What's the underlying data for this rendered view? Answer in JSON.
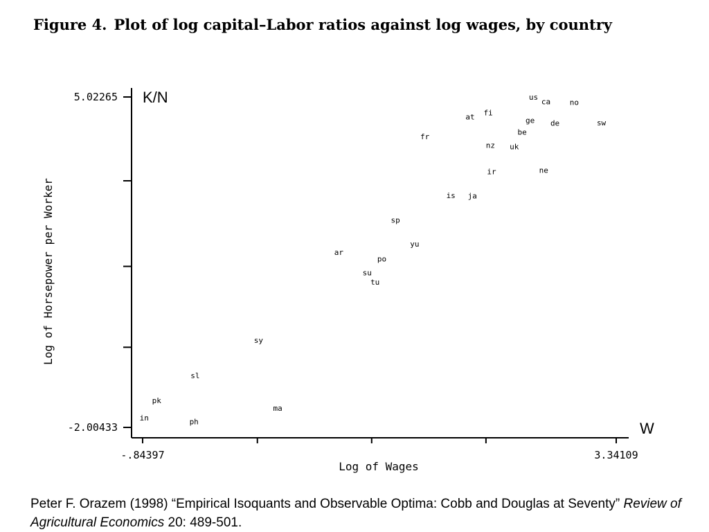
{
  "title": {
    "figure_label": "Figure 4.",
    "text": "Plot of log capital–Labor ratios against log wages, by country"
  },
  "chart_data": {
    "type": "scatter",
    "xlabel": "Log of Wages",
    "ylabel": "Log of Horsepower per Worker",
    "x_end_label": "W",
    "y_end_label": "K/N",
    "xlim": [
      -0.84397,
      3.34109
    ],
    "ylim": [
      -2.00433,
      5.02265
    ],
    "x_ticks": [
      -0.84397,
      0.17,
      1.18,
      2.19,
      3.34109
    ],
    "x_tick_labels": [
      "-.84397",
      "",
      "",
      "",
      "3.34109"
    ],
    "y_ticks": [
      -2.00433,
      -0.3,
      1.42,
      3.24,
      5.02265
    ],
    "y_tick_labels": [
      "-2.00433",
      "",
      "",
      "",
      "5.02265"
    ],
    "grid": false,
    "points": [
      {
        "label": "us",
        "x": 2.61,
        "y": 5.02
      },
      {
        "label": "ca",
        "x": 2.72,
        "y": 4.93
      },
      {
        "label": "no",
        "x": 2.97,
        "y": 4.91
      },
      {
        "label": "fi",
        "x": 2.21,
        "y": 4.69
      },
      {
        "label": "at",
        "x": 2.05,
        "y": 4.6
      },
      {
        "label": "ge",
        "x": 2.58,
        "y": 4.53
      },
      {
        "label": "de",
        "x": 2.8,
        "y": 4.47
      },
      {
        "label": "sw",
        "x": 3.21,
        "y": 4.48
      },
      {
        "label": "be",
        "x": 2.51,
        "y": 4.28
      },
      {
        "label": "fr",
        "x": 1.65,
        "y": 4.18
      },
      {
        "label": "nz",
        "x": 2.23,
        "y": 4.0
      },
      {
        "label": "uk",
        "x": 2.44,
        "y": 3.97
      },
      {
        "label": "ir",
        "x": 2.24,
        "y": 3.44
      },
      {
        "label": "ne",
        "x": 2.7,
        "y": 3.47
      },
      {
        "label": "is",
        "x": 1.88,
        "y": 2.93
      },
      {
        "label": "ja",
        "x": 2.07,
        "y": 2.92
      },
      {
        "label": "sp",
        "x": 1.39,
        "y": 2.41
      },
      {
        "label": "yu",
        "x": 1.56,
        "y": 1.9
      },
      {
        "label": "ar",
        "x": 0.89,
        "y": 1.72
      },
      {
        "label": "po",
        "x": 1.27,
        "y": 1.58
      },
      {
        "label": "su",
        "x": 1.14,
        "y": 1.29
      },
      {
        "label": "tu",
        "x": 1.21,
        "y": 1.09
      },
      {
        "label": "sy",
        "x": 0.18,
        "y": -0.15
      },
      {
        "label": "sl",
        "x": -0.38,
        "y": -0.9
      },
      {
        "label": "pk",
        "x": -0.72,
        "y": -1.43
      },
      {
        "label": "ma",
        "x": 0.35,
        "y": -1.59
      },
      {
        "label": "in",
        "x": -0.83,
        "y": -1.8
      },
      {
        "label": "ph",
        "x": -0.39,
        "y": -1.88
      }
    ]
  },
  "citation": {
    "prefix": "Peter F. Orazem (1998) “Empirical Isoquants and Observable Optima: Cobb and Douglas at Seventy” ",
    "journal": "Review of Agricultural Economics",
    "suffix": " 20: 489-501."
  }
}
